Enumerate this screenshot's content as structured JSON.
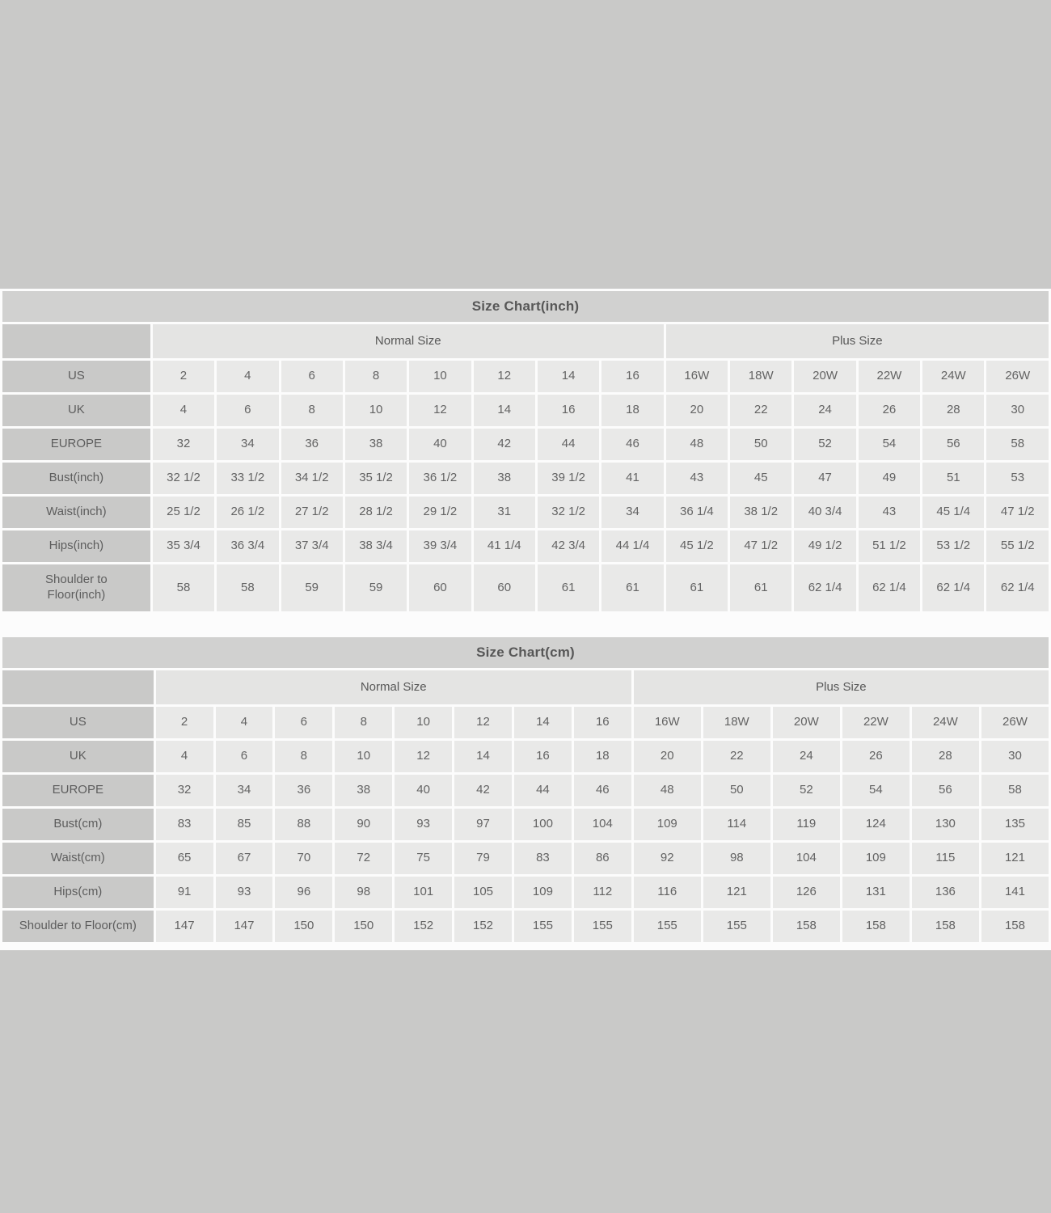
{
  "colors": {
    "page_bg": "#c9c9c8",
    "panel_bg": "#fcfcfc",
    "title_bg": "#d1d1d0",
    "label_bg": "#c9c9c8",
    "group_bg": "#e4e4e3",
    "cell_bg": "#e9e9e8",
    "text": "#636363",
    "title_text": "#575757",
    "label_text": "#5d5d5d"
  },
  "tables": [
    {
      "id": "inch",
      "title": "Size Chart(inch)",
      "column_groups": [
        {
          "label": "Normal Size",
          "span": 8
        },
        {
          "label": "Plus Size",
          "span": 6
        }
      ],
      "rows": [
        {
          "label": "US",
          "values": [
            "2",
            "4",
            "6",
            "8",
            "10",
            "12",
            "14",
            "16",
            "16W",
            "18W",
            "20W",
            "22W",
            "24W",
            "26W"
          ]
        },
        {
          "label": "UK",
          "values": [
            "4",
            "6",
            "8",
            "10",
            "12",
            "14",
            "16",
            "18",
            "20",
            "22",
            "24",
            "26",
            "28",
            "30"
          ]
        },
        {
          "label": "EUROPE",
          "values": [
            "32",
            "34",
            "36",
            "38",
            "40",
            "42",
            "44",
            "46",
            "48",
            "50",
            "52",
            "54",
            "56",
            "58"
          ]
        },
        {
          "label": "Bust(inch)",
          "values": [
            "32 1/2",
            "33 1/2",
            "34 1/2",
            "35 1/2",
            "36 1/2",
            "38",
            "39 1/2",
            "41",
            "43",
            "45",
            "47",
            "49",
            "51",
            "53"
          ]
        },
        {
          "label": "Waist(inch)",
          "values": [
            "25 1/2",
            "26 1/2",
            "27 1/2",
            "28 1/2",
            "29 1/2",
            "31",
            "32 1/2",
            "34",
            "36 1/4",
            "38 1/2",
            "40 3/4",
            "43",
            "45 1/4",
            "47 1/2"
          ]
        },
        {
          "label": "Hips(inch)",
          "values": [
            "35 3/4",
            "36 3/4",
            "37 3/4",
            "38 3/4",
            "39 3/4",
            "41 1/4",
            "42 3/4",
            "44 1/4",
            "45 1/2",
            "47 1/2",
            "49 1/2",
            "51 1/2",
            "53 1/2",
            "55 1/2"
          ]
        },
        {
          "label": "Shoulder to\nFloor(inch)",
          "values": [
            "58",
            "58",
            "59",
            "59",
            "60",
            "60",
            "61",
            "61",
            "61",
            "61",
            "62 1/4",
            "62 1/4",
            "62 1/4",
            "62 1/4"
          ]
        }
      ]
    },
    {
      "id": "cm",
      "title": "Size Chart(cm)",
      "column_groups": [
        {
          "label": "Normal Size",
          "span": 8
        },
        {
          "label": "Plus Size",
          "span": 6
        }
      ],
      "rows": [
        {
          "label": "US",
          "values": [
            "2",
            "4",
            "6",
            "8",
            "10",
            "12",
            "14",
            "16",
            "16W",
            "18W",
            "20W",
            "22W",
            "24W",
            "26W"
          ]
        },
        {
          "label": "UK",
          "values": [
            "4",
            "6",
            "8",
            "10",
            "12",
            "14",
            "16",
            "18",
            "20",
            "22",
            "24",
            "26",
            "28",
            "30"
          ]
        },
        {
          "label": "EUROPE",
          "values": [
            "32",
            "34",
            "36",
            "38",
            "40",
            "42",
            "44",
            "46",
            "48",
            "50",
            "52",
            "54",
            "56",
            "58"
          ]
        },
        {
          "label": "Bust(cm)",
          "values": [
            "83",
            "85",
            "88",
            "90",
            "93",
            "97",
            "100",
            "104",
            "109",
            "114",
            "119",
            "124",
            "130",
            "135"
          ]
        },
        {
          "label": "Waist(cm)",
          "values": [
            "65",
            "67",
            "70",
            "72",
            "75",
            "79",
            "83",
            "86",
            "92",
            "98",
            "104",
            "109",
            "115",
            "121"
          ]
        },
        {
          "label": "Hips(cm)",
          "values": [
            "91",
            "93",
            "96",
            "98",
            "101",
            "105",
            "109",
            "112",
            "116",
            "121",
            "126",
            "131",
            "136",
            "141"
          ]
        },
        {
          "label": "Shoulder to Floor(cm)",
          "values": [
            "147",
            "147",
            "150",
            "150",
            "152",
            "152",
            "155",
            "155",
            "155",
            "155",
            "158",
            "158",
            "158",
            "158"
          ]
        }
      ]
    }
  ]
}
